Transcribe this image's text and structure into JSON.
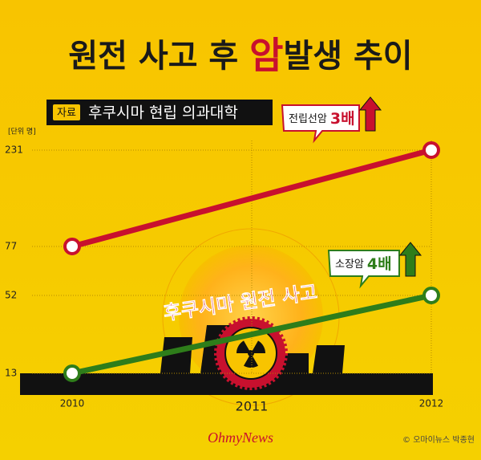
{
  "chart_data": {
    "type": "line",
    "title": {
      "before": "원전 사고 후 ",
      "highlight": "암",
      "after": "발생 추이"
    },
    "source_tag": "자료",
    "source": "후쿠시마 현립 의과대학",
    "unit": "[단위 명]",
    "x": [
      2010,
      2012
    ],
    "xlim": [
      2010,
      2012
    ],
    "xticks": [
      2010,
      2011,
      2012
    ],
    "ylim": [
      13,
      231
    ],
    "yticks": [
      13,
      52,
      77,
      231
    ],
    "grid": true,
    "series": [
      {
        "name": "전립선암",
        "color": "#c8102e",
        "values": [
          77,
          231
        ],
        "annotation": "3배"
      },
      {
        "name": "소장암",
        "color": "#2e7d1a",
        "values": [
          13,
          52
        ],
        "annotation": "4배"
      }
    ],
    "event": "후쿠시마 원전 사고",
    "brand": "OhmyNews",
    "credit": "© 오마이뉴스  박종현"
  }
}
